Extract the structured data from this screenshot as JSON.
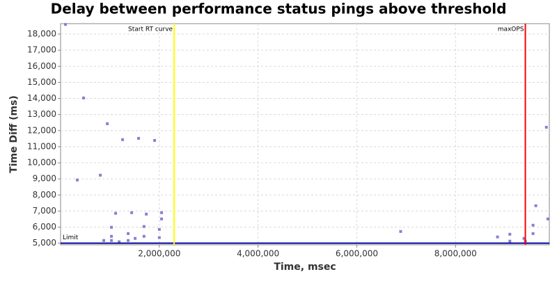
{
  "chart_data": {
    "type": "scatter",
    "title": "Delay between performance status pings above threshold",
    "x_label": "Time, msec",
    "y_label": "Time Diff (ms)",
    "x": [
      99000,
      339000,
      466000,
      805000,
      875000,
      946000,
      1030000,
      1030000,
      1030000,
      1115000,
      1186000,
      1256000,
      1369000,
      1369000,
      1440000,
      1510000,
      1580000,
      1690000,
      1690000,
      1736000,
      1905000,
      2000000,
      2000000,
      2046000,
      2046000,
      6888000,
      8850000,
      9100000,
      9100000,
      9386000,
      9414000,
      9570000,
      9570000,
      9626000,
      9840000,
      9870000
    ],
    "values": [
      18600,
      8930,
      14030,
      9230,
      5170,
      12430,
      5990,
      5430,
      5170,
      6860,
      5090,
      11440,
      5170,
      5600,
      6900,
      5300,
      11520,
      6040,
      5430,
      6810,
      11390,
      5860,
      5350,
      6900,
      6510,
      5730,
      5390,
      5560,
      5130,
      5300,
      5130,
      6120,
      5600,
      7330,
      12210,
      6510
    ],
    "color": "#8a7fd0",
    "xlim": [
      0,
      9900000
    ],
    "ylim": [
      4900,
      18650
    ],
    "xticks": [
      {
        "value": 2000000,
        "label": "2,000,000"
      },
      {
        "value": 4000000,
        "label": "4,000,000"
      },
      {
        "value": 6000000,
        "label": "6,000,000"
      },
      {
        "value": 8000000,
        "label": "8,000,000"
      }
    ],
    "yticks": [
      {
        "value": 5000,
        "label": "5,000"
      },
      {
        "value": 6000,
        "label": "6,000"
      },
      {
        "value": 7000,
        "label": "7,000"
      },
      {
        "value": 8000,
        "label": "8,000"
      },
      {
        "value": 9000,
        "label": "9,000"
      },
      {
        "value": 10000,
        "label": "10,000"
      },
      {
        "value": 11000,
        "label": "11,000"
      },
      {
        "value": 12000,
        "label": "12,000"
      },
      {
        "value": 13000,
        "label": "13,000"
      },
      {
        "value": 14000,
        "label": "14,000"
      },
      {
        "value": 15000,
        "label": "15,000"
      },
      {
        "value": 16000,
        "label": "16,000"
      },
      {
        "value": 17000,
        "label": "17,000"
      },
      {
        "value": 18000,
        "label": "18,000"
      }
    ],
    "grid": true,
    "vlines": [
      {
        "text": "Start RT curve",
        "value": 2300000,
        "color": "#ffff00"
      },
      {
        "text": "maxOPS",
        "value": 9414000,
        "color": "#ff0000"
      }
    ],
    "hlines": [
      {
        "text": "Limit",
        "value": 5000,
        "color": "#0000a0"
      }
    ]
  }
}
